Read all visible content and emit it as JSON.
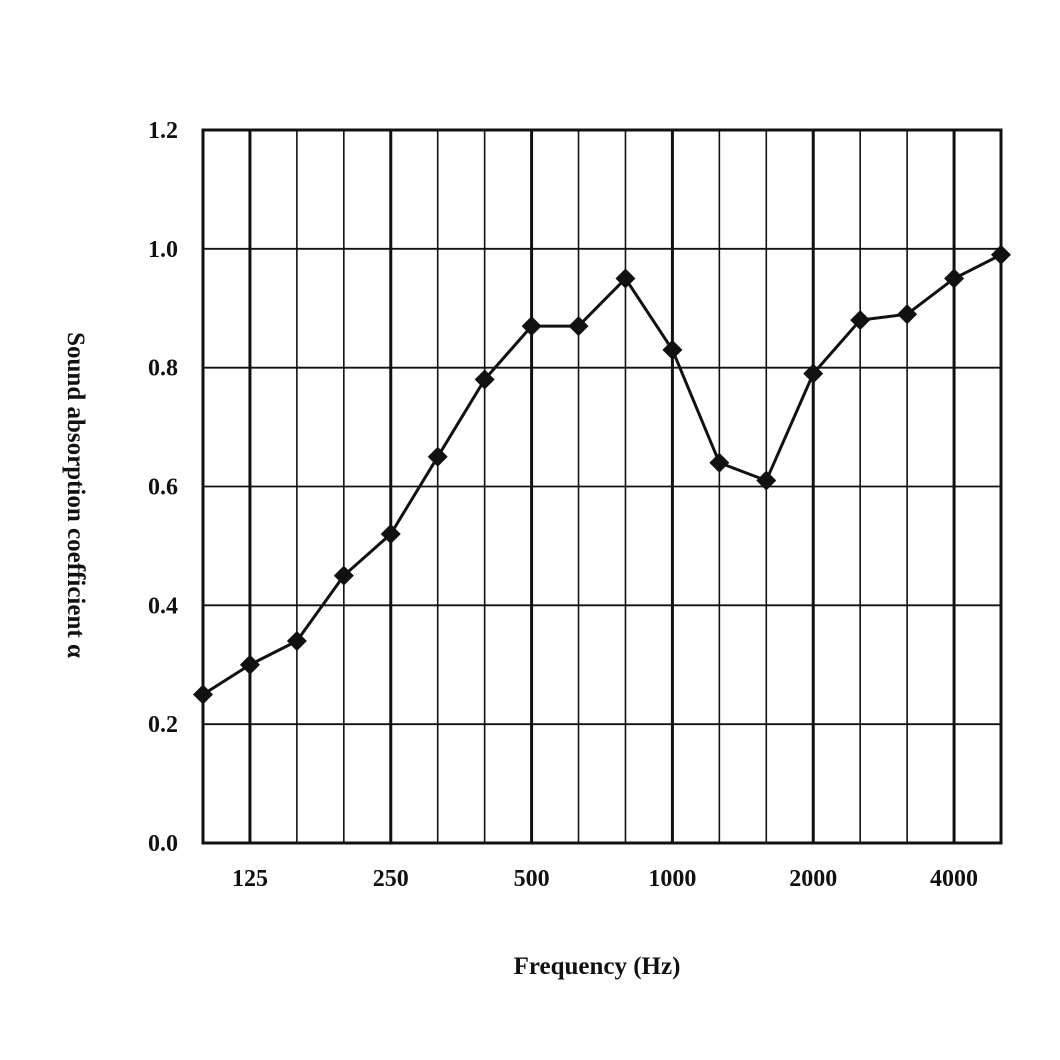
{
  "chart_data": {
    "type": "line",
    "title": "",
    "xlabel": "Frequency (Hz)",
    "ylabel": "Sound absorption coefficient  α",
    "x_scale": "log (1/3-octave bands)",
    "x": [
      100,
      125,
      160,
      200,
      250,
      315,
      400,
      500,
      630,
      800,
      1000,
      1250,
      1600,
      2000,
      2500,
      3150,
      4000,
      5000
    ],
    "x_tick_labels": [
      "125",
      "250",
      "500",
      "1000",
      "2000",
      "4000"
    ],
    "y_tick_labels": [
      "0.0",
      "0.2",
      "0.4",
      "0.6",
      "0.8",
      "1.0",
      "1.2"
    ],
    "ylim": [
      0,
      1.2
    ],
    "grid": true,
    "series": [
      {
        "marker": "diamond",
        "color": "#111111",
        "values": [
          0.25,
          0.3,
          0.34,
          0.45,
          0.52,
          0.65,
          0.78,
          0.87,
          0.87,
          0.95,
          0.83,
          0.64,
          0.61,
          0.79,
          0.88,
          0.89,
          0.95,
          0.99
        ]
      }
    ]
  }
}
